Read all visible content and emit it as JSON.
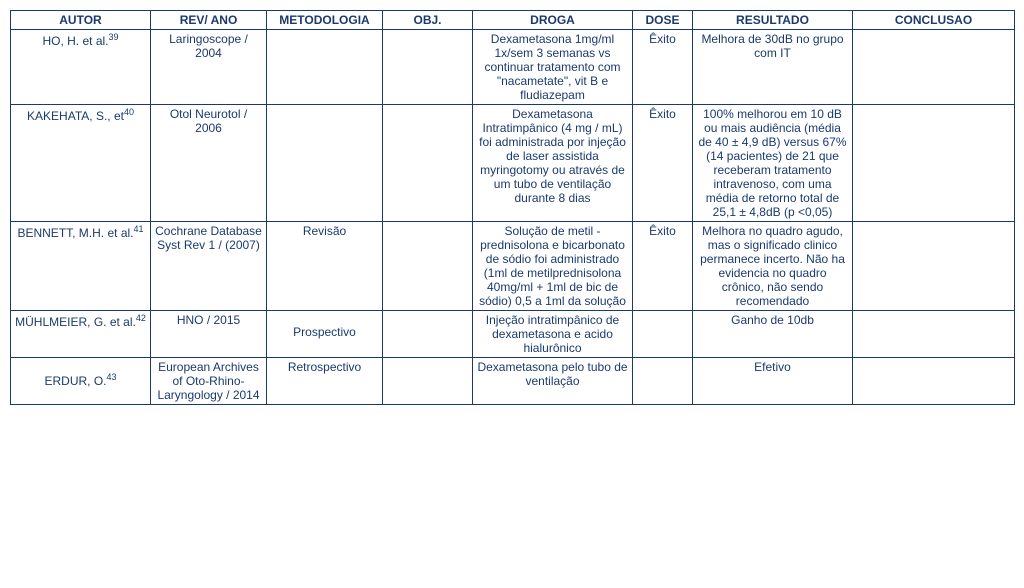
{
  "table": {
    "headers": {
      "autor": "AUTOR",
      "rev": "REV/ ANO",
      "metod": "METODOLOGIA",
      "obj": "OBJ.",
      "droga": "DROGA",
      "dose": "DOSE",
      "result": "RESULTADO",
      "concl": "CONCLUSAO"
    },
    "rows": [
      {
        "autor_pre": "HO, H. et al.",
        "autor_sup": "39",
        "rev": "Laringoscope / 2004",
        "metod": "",
        "obj": "",
        "droga": "Dexametasona 1mg/ml 1x/sem 3 semanas vs continuar tratamento com \"nacametate\", vit B e fludiazepam",
        "dose": "Êxito",
        "result": "Melhora de 30dB no grupo com IT",
        "concl": ""
      },
      {
        "autor_pre": "KAKEHATA, S., et",
        "autor_sup": "40",
        "rev": "Otol Neurotol  / 2006",
        "metod": "",
        "obj": "",
        "droga": "Dexametasona Intratimpânico (4 mg / mL) foi administrada por injeção de laser assistida myringotomy ou através de um tubo de ventilação durante 8 dias",
        "dose": "Êxito",
        "result": "100% melhorou em 10 dB ou mais audiência (média de 40 ± 4,9 dB) versus 67% (14 pacientes) de 21 que receberam tratamento intravenoso, com uma média de retorno total de 25,1 ± 4,8dB (p <0,05)",
        "concl": ""
      },
      {
        "autor_pre": "BENNETT, M.H. et al.",
        "autor_sup": "41",
        "rev": "Cochrane Database Syst Rev 1 /  (2007)",
        "metod": "Revisão",
        "obj": "",
        "droga": "Solução de metil - prednisolona e bicarbonato de sódio foi administrado (1ml de metilprednisolona 40mg/ml + 1ml de bic de sódio) 0,5 a 1ml da solução",
        "dose": "Êxito",
        "result": "Melhora no quadro agudo, mas o significado clinico permanece incerto. Não ha evidencia no quadro  crônico, não sendo recomendado",
        "concl": ""
      },
      {
        "autor_pre": "MÜHLMEIER, G. et al.",
        "autor_sup": "42",
        "rev": "HNO / 2015",
        "metod": "Prospectivo",
        "obj": "",
        "droga": "Injeção intratimpânico de dexametasona e acido hialurônico",
        "dose": "",
        "result": "Ganho de 10db",
        "concl": ""
      },
      {
        "autor_pre": "ERDUR, O.",
        "autor_sup": "43",
        "rev": "European Archives of Oto-Rhino-Laryngology / 2014",
        "metod": "Retrospectivo",
        "obj": "",
        "droga": "Dexametasona pelo tubo de ventilação",
        "dose": "",
        "result": "Efetivo",
        "concl": ""
      }
    ]
  }
}
